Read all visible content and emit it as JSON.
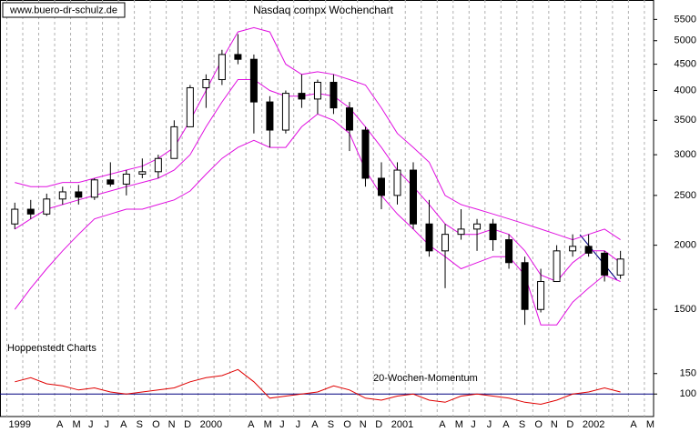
{
  "chart_data": [
    {
      "type": "candlestick",
      "title": "Nasdaq compx Wochenchart",
      "source": "www.buero-dr-schulz.de",
      "annotation": "Hoppenstedt Charts",
      "categories": [
        "1999",
        null,
        null,
        "A",
        "M",
        "J",
        "J",
        "A",
        "S",
        "O",
        "N",
        "D",
        "2000",
        null,
        null,
        "A",
        "M",
        "J",
        "J",
        "A",
        "S",
        "O",
        "N",
        "D",
        "2001",
        null,
        null,
        "A",
        "M",
        "J",
        "J",
        "A",
        "S",
        "O",
        "N",
        "D",
        "2002",
        null,
        null,
        "A",
        "M"
      ],
      "open": [
        2200,
        2350,
        2300,
        2460,
        2540,
        2480,
        2680,
        2630,
        2750,
        2780,
        2950,
        3400,
        4050,
        4200,
        4700,
        4600,
        3800,
        3350,
        3950,
        3850,
        4150,
        3700,
        3350,
        2700,
        2500,
        2800,
        2200,
        1950,
        2100,
        2150,
        2200,
        2050,
        1850,
        1500,
        1700,
        1950,
        1990,
        1930,
        1750,
        null,
        null
      ],
      "high": [
        2420,
        2450,
        2520,
        2600,
        2620,
        2700,
        2900,
        2800,
        2950,
        3000,
        3500,
        4100,
        4300,
        4800,
        5150,
        4700,
        3900,
        4000,
        4300,
        4200,
        4300,
        3800,
        3400,
        2900,
        2900,
        2900,
        2450,
        2200,
        2350,
        2250,
        2250,
        2100,
        1900,
        1800,
        2000,
        2100,
        2100,
        1950,
        1950,
        null,
        null
      ],
      "low": [
        2150,
        2250,
        2280,
        2400,
        2400,
        2450,
        2600,
        2500,
        2700,
        2700,
        2950,
        3400,
        3700,
        4100,
        4500,
        3300,
        3100,
        3300,
        3700,
        3600,
        3600,
        3050,
        2600,
        2350,
        2400,
        2150,
        1900,
        1650,
        2050,
        1950,
        1950,
        1800,
        1400,
        1480,
        1700,
        1900,
        1900,
        1700,
        1720,
        null,
        null
      ],
      "close": [
        2350,
        2300,
        2460,
        2540,
        2480,
        2680,
        2630,
        2750,
        2780,
        2950,
        3400,
        4050,
        4200,
        4700,
        4600,
        3800,
        3350,
        3950,
        3850,
        4150,
        3700,
        3350,
        2700,
        2500,
        2800,
        2200,
        1950,
        2100,
        2150,
        2200,
        2050,
        1850,
        1500,
        1700,
        1950,
        1990,
        1930,
        1750,
        1880,
        null,
        null
      ],
      "overlays": [
        {
          "color": "#e010e0",
          "values": [
            2650,
            2600,
            2600,
            2650,
            2650,
            2700,
            2750,
            2800,
            2850,
            2950,
            3100,
            3500,
            4000,
            4600,
            5200,
            5300,
            5200,
            4500,
            4300,
            4350,
            4300,
            4200,
            4100,
            3700,
            3300,
            3100,
            2900,
            2500,
            2400,
            2350,
            2300,
            2250,
            2200,
            2150,
            2100,
            2050,
            2100,
            2150,
            2050,
            null,
            null
          ]
        },
        {
          "color": "#e010e0",
          "values": [
            2150,
            2250,
            2350,
            2400,
            2450,
            2500,
            2550,
            2600,
            2650,
            2700,
            2800,
            3000,
            3400,
            3800,
            4200,
            4200,
            4000,
            3900,
            3900,
            3950,
            3900,
            3700,
            3400,
            3100,
            2800,
            2600,
            2400,
            2200,
            2100,
            2100,
            2150,
            2100,
            1950,
            1750,
            1700,
            1850,
            1950,
            1950,
            1850,
            null,
            null
          ]
        },
        {
          "color": "#e010e0",
          "values": [
            1500,
            1650,
            1800,
            1950,
            2100,
            2250,
            2300,
            2350,
            2350,
            2400,
            2450,
            2550,
            2750,
            2950,
            3100,
            3200,
            3100,
            3100,
            3400,
            3600,
            3500,
            3300,
            2800,
            2500,
            2300,
            2150,
            2000,
            1900,
            1800,
            1850,
            1900,
            1900,
            1750,
            1400,
            1400,
            1550,
            1650,
            1750,
            1700,
            null,
            null
          ]
        }
      ],
      "log_scale": true,
      "ylim": [
        1200,
        6000
      ],
      "yticks": [
        1500,
        2000,
        2500,
        3000,
        3500,
        4000,
        4500,
        5000,
        5500
      ],
      "grid": true
    },
    {
      "type": "line",
      "label": "20-Wochen-Momentum",
      "color": "#e00000",
      "values": [
        130,
        140,
        125,
        120,
        110,
        115,
        105,
        100,
        105,
        110,
        115,
        130,
        140,
        145,
        160,
        130,
        90,
        95,
        100,
        105,
        120,
        110,
        90,
        85,
        95,
        100,
        85,
        80,
        95,
        100,
        95,
        90,
        80,
        75,
        85,
        100,
        105,
        115,
        105,
        null,
        null
      ],
      "ylim": [
        45,
        185
      ],
      "yticks": [
        100,
        150
      ],
      "baseline": 100
    }
  ]
}
